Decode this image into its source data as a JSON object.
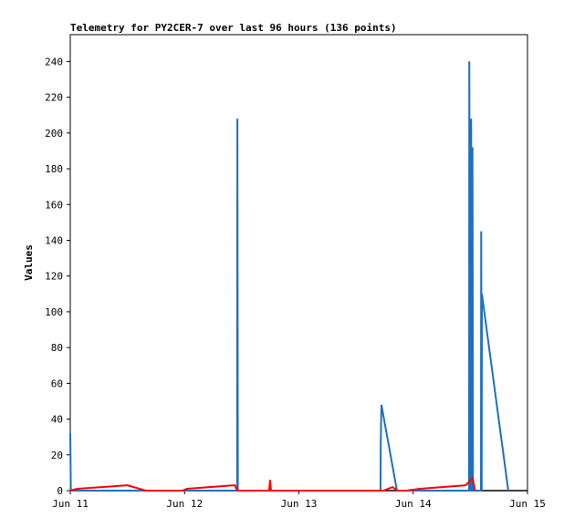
{
  "chart_data": {
    "type": "line",
    "title": "Telemetry for PY2CER-7 over last 96 hours (136 points)",
    "ylabel": "Values",
    "xlim": [
      0,
      4
    ],
    "xticks": [
      {
        "value": 0,
        "label": "Jun 11"
      },
      {
        "value": 1,
        "label": "Jun 12"
      },
      {
        "value": 2,
        "label": "Jun 13"
      },
      {
        "value": 3,
        "label": "Jun 14"
      },
      {
        "value": 4,
        "label": "Jun 15"
      }
    ],
    "ylim": [
      0,
      255
    ],
    "yticks": [
      0,
      20,
      40,
      60,
      80,
      100,
      120,
      140,
      160,
      180,
      200,
      220,
      240
    ],
    "series": [
      {
        "color": "#1f6fbf",
        "x": [
          0,
          0.005,
          1.46,
          1.462,
          1.466,
          2.714,
          2.716,
          2.722,
          2.858,
          3.489,
          3.491,
          3.497,
          3.505,
          3.507,
          3.511,
          3.513,
          3.517,
          3.519,
          3.523,
          3.593,
          3.595,
          3.599,
          3.601,
          3.832
        ],
        "values": [
          32,
          0,
          0,
          208,
          0,
          0,
          25,
          48,
          0,
          0,
          240,
          0,
          0,
          208,
          0,
          105,
          0,
          192,
          0,
          0,
          145,
          0,
          110,
          0
        ]
      },
      {
        "color": "#ff0000",
        "x": [
          0,
          0.06,
          0.5,
          0.66,
          0.98,
          1.02,
          1.44,
          1.46,
          1.74,
          1.748,
          1.756,
          2.74,
          2.82,
          2.86,
          2.94,
          3.06,
          3.46,
          3.52,
          3.54
        ],
        "values": [
          0,
          1,
          3,
          0,
          0,
          1,
          3,
          0,
          0,
          6,
          0,
          0,
          2,
          0,
          0,
          1,
          3,
          7,
          0
        ]
      }
    ]
  }
}
